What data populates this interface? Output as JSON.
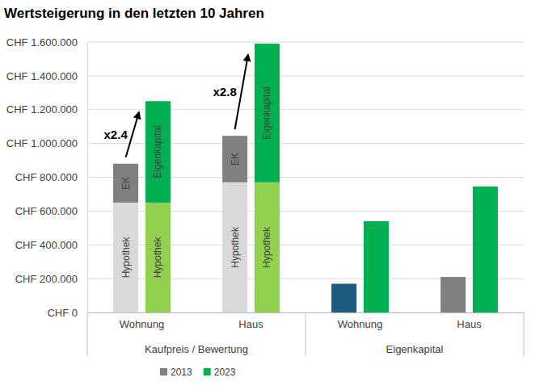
{
  "chart_data": {
    "type": "bar",
    "title": "Wertsteigerung in den letzten 10 Jahren",
    "stacked": true,
    "grid": true,
    "legend": "bottom",
    "categories": [
      "Wohnung",
      "Haus",
      "Wohnung",
      "Haus"
    ],
    "category_groups": [
      {
        "label": "Kaufpreis / Bewertung",
        "span": 2
      },
      {
        "label": "Eigenkapital",
        "span": 2
      }
    ],
    "ylim": [
      0,
      1600000
    ],
    "yticks": [
      {
        "value": 0,
        "label": "CHF 0"
      },
      {
        "value": 200000,
        "label": "CHF 200.000"
      },
      {
        "value": 400000,
        "label": "CHF 400.000"
      },
      {
        "value": 600000,
        "label": "CHF 600.000"
      },
      {
        "value": 800000,
        "label": "CHF 800.000"
      },
      {
        "value": 1000000,
        "label": "CHF 1.000.000"
      },
      {
        "value": 1200000,
        "label": "CHF 1.200.000"
      },
      {
        "value": 1400000,
        "label": "CHF 1.400.000"
      },
      {
        "value": 1600000,
        "label": "CHF 1.600.000"
      }
    ],
    "series": [
      {
        "name": "2013",
        "color": "#808080",
        "segments": [
          {
            "color": "#d9d9d9",
            "values": [
              650000,
              770000,
              null,
              null
            ],
            "labels": [
              "Hypothek",
              "Hypothek",
              null,
              null
            ]
          },
          {
            "colors": [
              "#808080",
              "#808080",
              "#1d5c7c",
              "#808080"
            ],
            "values": [
              230000,
              275000,
              170000,
              210000
            ],
            "labels": [
              "EK",
              "EK",
              null,
              null
            ]
          }
        ]
      },
      {
        "name": "2023",
        "color": "#00b050",
        "segments": [
          {
            "color": "#92d050",
            "values": [
              650000,
              770000,
              null,
              null
            ],
            "labels": [
              "Hypothek",
              "Hypothek",
              null,
              null
            ]
          },
          {
            "color": "#00b050",
            "values": [
              600000,
              820000,
              540000,
              745000
            ],
            "labels": [
              "Eigenkapital",
              "Eigenkapital",
              null,
              null
            ]
          }
        ]
      }
    ],
    "annotations": [
      {
        "text": "x2.4",
        "category": 0
      },
      {
        "text": "x2.8",
        "category": 1
      }
    ]
  }
}
